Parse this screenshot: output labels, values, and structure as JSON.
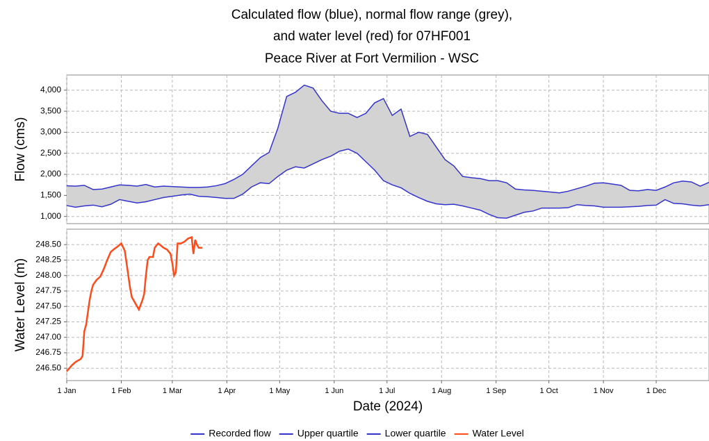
{
  "chart_data": [
    {
      "type": "line",
      "title": [
        "Calculated flow (blue), normal flow range (grey),",
        "and water level (red) for 07HF001",
        "Peace River at Fort Vermilion - WSC"
      ],
      "ylabel": "Flow (cms)",
      "xlim": [
        0,
        365
      ],
      "ylim": [
        830,
        4360
      ],
      "yticks": [
        {
          "value": 1000,
          "label": "1,000"
        },
        {
          "value": 1500,
          "label": "1,500"
        },
        {
          "value": 2000,
          "label": "2,000"
        },
        {
          "value": 2500,
          "label": "2,500"
        },
        {
          "value": 3000,
          "label": "3,000"
        },
        {
          "value": 3500,
          "label": "3,500"
        },
        {
          "value": 4000,
          "label": "4,000"
        }
      ],
      "grid": true,
      "range_fill": "#d3d3d3",
      "x": [
        0,
        5,
        10,
        15,
        20,
        25,
        30,
        35,
        40,
        45,
        50,
        55,
        60,
        65,
        70,
        75,
        80,
        85,
        90,
        95,
        100,
        105,
        110,
        115,
        120,
        125,
        130,
        135,
        140,
        145,
        150,
        155,
        160,
        165,
        170,
        175,
        180,
        185,
        190,
        195,
        200,
        205,
        210,
        215,
        220,
        225,
        230,
        235,
        240,
        245,
        250,
        255,
        260,
        265,
        270,
        275,
        280,
        285,
        290,
        295,
        300,
        305,
        310,
        315,
        320,
        325,
        330,
        335,
        340,
        345,
        350,
        355,
        360,
        365
      ],
      "series": [
        {
          "name": "Recorded flow",
          "color": "#3333cc",
          "values": [
            null,
            null,
            null,
            null,
            null,
            null,
            null,
            null,
            null,
            null,
            null,
            null,
            null,
            null,
            null,
            null,
            null,
            null,
            null,
            null,
            null,
            null,
            null,
            null,
            null,
            null,
            null,
            null,
            null,
            null,
            null,
            null,
            null,
            null,
            null,
            null,
            null,
            null,
            null,
            null,
            null,
            null,
            null,
            null,
            null,
            null,
            null,
            null,
            null,
            null,
            null,
            null,
            null,
            null,
            null,
            null,
            null,
            null,
            null,
            null,
            null,
            null,
            null,
            null,
            null,
            null,
            null,
            null,
            null,
            null,
            null,
            null,
            null,
            null
          ]
        },
        {
          "name": "Upper quartile",
          "color": "#3333cc",
          "values": [
            1730,
            1720,
            1740,
            1640,
            1650,
            1700,
            1750,
            1740,
            1720,
            1760,
            1700,
            1720,
            1710,
            1700,
            1690,
            1690,
            1700,
            1730,
            1780,
            1880,
            2000,
            2200,
            2400,
            2520,
            3100,
            3850,
            3950,
            4120,
            4050,
            3750,
            3500,
            3450,
            3450,
            3350,
            3450,
            3700,
            3800,
            3400,
            3550,
            2900,
            3000,
            2950,
            2650,
            2350,
            2200,
            1950,
            1920,
            1900,
            1850,
            1850,
            1800,
            1650,
            1630,
            1620,
            1600,
            1580,
            1560,
            1600,
            1660,
            1720,
            1790,
            1800,
            1770,
            1740,
            1620,
            1610,
            1640,
            1620,
            1700,
            1800,
            1840,
            1820,
            1720,
            1810
          ]
        },
        {
          "name": "Lower quartile",
          "color": "#3333cc",
          "values": [
            1260,
            1220,
            1250,
            1270,
            1230,
            1290,
            1400,
            1360,
            1320,
            1350,
            1400,
            1450,
            1480,
            1510,
            1530,
            1480,
            1470,
            1450,
            1430,
            1430,
            1530,
            1700,
            1800,
            1780,
            1950,
            2100,
            2180,
            2150,
            2250,
            2350,
            2430,
            2550,
            2600,
            2500,
            2300,
            2100,
            1850,
            1750,
            1680,
            1550,
            1450,
            1360,
            1300,
            1280,
            1290,
            1250,
            1200,
            1150,
            1050,
            970,
            960,
            1030,
            1100,
            1130,
            1200,
            1200,
            1200,
            1210,
            1280,
            1260,
            1250,
            1220,
            1220,
            1220,
            1230,
            1240,
            1260,
            1270,
            1400,
            1310,
            1300,
            1270,
            1250,
            1280
          ]
        }
      ]
    },
    {
      "type": "line",
      "ylabel": "Water Level (m)",
      "xlabel": "Date (2024)",
      "xlim": [
        0,
        365
      ],
      "ylim": [
        246.3,
        248.75
      ],
      "xticks": [
        {
          "value": 0,
          "label": "1 Jan"
        },
        {
          "value": 31,
          "label": "1 Feb"
        },
        {
          "value": 60,
          "label": "1 Mar"
        },
        {
          "value": 91,
          "label": "1 Apr"
        },
        {
          "value": 121,
          "label": "1 May"
        },
        {
          "value": 152,
          "label": "1 Jun"
        },
        {
          "value": 182,
          "label": "1 Jul"
        },
        {
          "value": 213,
          "label": "1 Aug"
        },
        {
          "value": 244,
          "label": "1 Sep"
        },
        {
          "value": 274,
          "label": "1 Oct"
        },
        {
          "value": 305,
          "label": "1 Nov"
        },
        {
          "value": 335,
          "label": "1 Dec"
        }
      ],
      "yticks": [
        {
          "value": 246.5,
          "label": "246.50"
        },
        246.75,
        {
          "value": 247,
          "label": "247.00"
        },
        247.25,
        {
          "value": 247.5,
          "label": "247.50"
        },
        247.75,
        {
          "value": 248,
          "label": "248.00"
        },
        248.25,
        {
          "value": 248.5,
          "label": "248.50"
        }
      ],
      "grid": true,
      "x": [
        0,
        3,
        5,
        8,
        9,
        10,
        11,
        12,
        13,
        14,
        15,
        17,
        19,
        21,
        23,
        25,
        27,
        29,
        31,
        33,
        34,
        35,
        36,
        37,
        39,
        41,
        43,
        44,
        45,
        46,
        47,
        49,
        50,
        52,
        55,
        57,
        59,
        60,
        61,
        62,
        63,
        65,
        67,
        69,
        71,
        72,
        73,
        74,
        75,
        77
      ],
      "series": [
        {
          "name": "Water Level",
          "color": "#ff4a1a",
          "values": [
            246.45,
            246.55,
            246.6,
            246.65,
            246.7,
            247.1,
            247.2,
            247.4,
            247.6,
            247.75,
            247.85,
            247.93,
            247.98,
            248.1,
            248.25,
            248.38,
            248.43,
            248.47,
            248.52,
            248.4,
            248.2,
            248.0,
            247.8,
            247.65,
            247.55,
            247.45,
            247.6,
            247.7,
            248.0,
            248.25,
            248.3,
            248.3,
            248.45,
            248.52,
            248.45,
            248.42,
            248.35,
            248.2,
            248.0,
            248.05,
            248.52,
            248.52,
            248.55,
            248.6,
            248.62,
            248.35,
            248.58,
            248.5,
            248.45,
            248.45
          ]
        }
      ]
    }
  ]
}
